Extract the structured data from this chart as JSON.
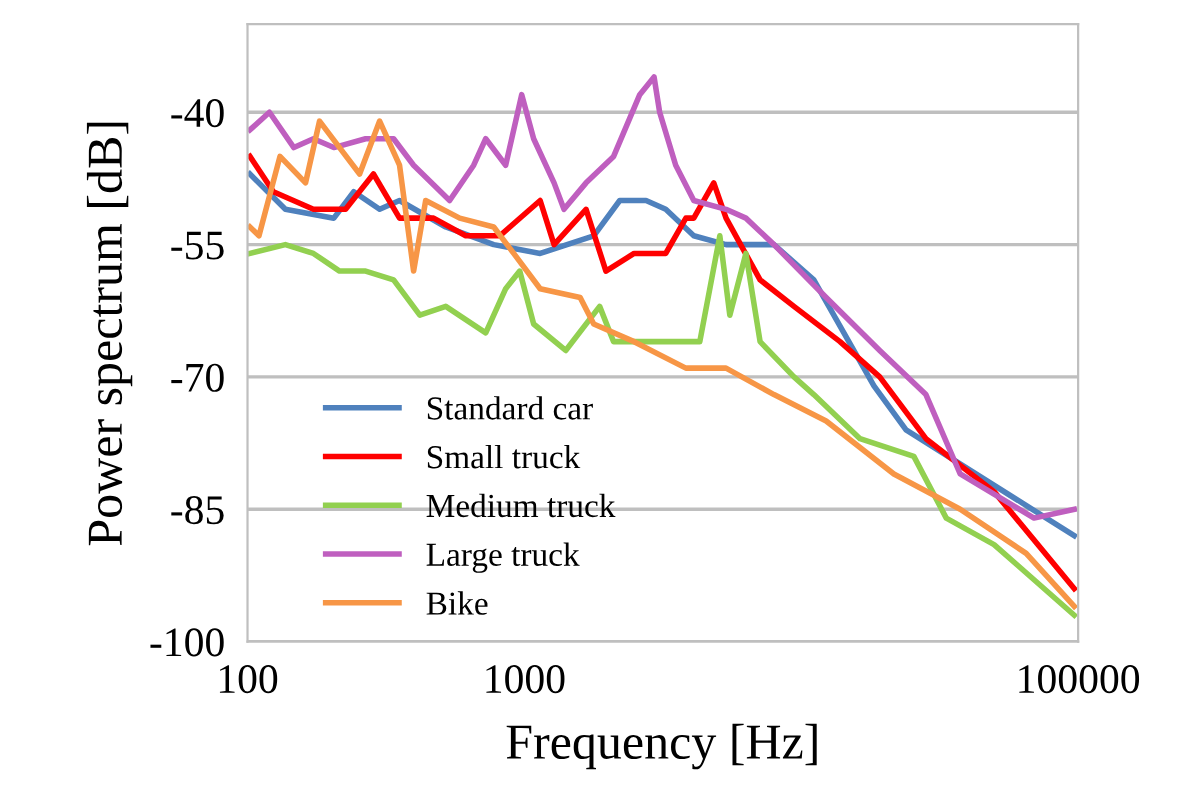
{
  "chart_data": {
    "type": "line",
    "xlabel": "Frequency [Hz]",
    "ylabel": "Power spectrum [dB]",
    "log": "x",
    "xlim": [
      100,
      100000
    ],
    "xticks": [
      100,
      1000,
      100000
    ],
    "ylim": [
      -100,
      -30
    ],
    "yticks": [
      -100,
      -85,
      -70,
      -55,
      -40
    ],
    "grid": "y",
    "legend": "bottom left",
    "marker": "none",
    "line_style": "solid",
    "series": [
      {
        "name": "Standard car",
        "color": "#4f81bd",
        "x": [
          102,
          137,
          205,
          242,
          300,
          354,
          520,
          775,
          1140,
          1780,
          2210,
          2750,
          3240,
          4090,
          5350,
          7970,
          11100,
          18300,
          23900,
          96800
        ],
        "values": [
          -47,
          -51,
          -52,
          -49,
          -51,
          -50,
          -53,
          -55,
          -56,
          -54,
          -50,
          -50,
          -51,
          -54,
          -55,
          -55,
          -59,
          -71,
          -76,
          -88
        ]
      },
      {
        "name": "Small truck",
        "color": "#ff0000",
        "x": [
          102,
          124,
          173,
          226,
          285,
          354,
          470,
          614,
          815,
          1140,
          1280,
          1670,
          1970,
          2490,
          3240,
          3830,
          4090,
          4830,
          5350,
          7100,
          9410,
          13800,
          19200,
          28200,
          49700,
          96800
        ],
        "values": [
          -45,
          -49,
          -51,
          -51,
          -47,
          -52,
          -52,
          -54,
          -54,
          -50,
          -55,
          -51,
          -58,
          -56,
          -56,
          -52,
          -52,
          -48,
          -52,
          -59,
          -62,
          -66,
          -70,
          -77,
          -83,
          -94
        ]
      },
      {
        "name": "Medium truck",
        "color": "#92d050",
        "x": [
          102,
          137,
          173,
          215,
          267,
          337,
          419,
          520,
          725,
          856,
          962,
          1080,
          1410,
          1870,
          2100,
          3080,
          4300,
          5080,
          5520,
          6310,
          7100,
          9410,
          11100,
          16300,
          25500,
          33400,
          49700,
          96800
        ],
        "values": [
          -56,
          -55,
          -56,
          -58,
          -58,
          -59,
          -63,
          -62,
          -65,
          -60,
          -58,
          -64,
          -67,
          -62,
          -66,
          -66,
          -66,
          -54,
          -63,
          -56,
          -66,
          -70,
          -72,
          -77,
          -79,
          -86,
          -89,
          -97
        ]
      },
      {
        "name": "Large truck",
        "color": "#bf5fbf",
        "x": [
          102,
          120,
          147,
          173,
          205,
          267,
          337,
          398,
          537,
          656,
          725,
          856,
          978,
          1080,
          1280,
          1390,
          1670,
          2100,
          2610,
          2940,
          3080,
          3520,
          4090,
          5350,
          6310,
          7970,
          12300,
          19200,
          28200,
          37500,
          69300,
          96800
        ],
        "values": [
          -42,
          -40,
          -44,
          -43,
          -44,
          -43,
          -43,
          -46,
          -50,
          -46,
          -43,
          -46,
          -38,
          -43,
          -48,
          -51,
          -48,
          -45,
          -38,
          -36,
          -40,
          -46,
          -50,
          -51,
          -52,
          -55,
          -61,
          -67,
          -72,
          -81,
          -86,
          -85
        ]
      },
      {
        "name": "Bike",
        "color": "#f79646",
        "x": [
          102,
          110,
          131,
          162,
          182,
          215,
          254,
          300,
          354,
          398,
          440,
          584,
          775,
          915,
          1140,
          1590,
          1780,
          2490,
          3830,
          5350,
          7970,
          12300,
          21600,
          37500,
          64900,
          96800
        ],
        "values": [
          -53,
          -54,
          -45,
          -48,
          -41,
          -44,
          -47,
          -41,
          -46,
          -58,
          -50,
          -52,
          -53,
          -56,
          -60,
          -61,
          -64,
          -66,
          -69,
          -69,
          -72,
          -75,
          -81,
          -85,
          -90,
          -96
        ]
      }
    ]
  }
}
